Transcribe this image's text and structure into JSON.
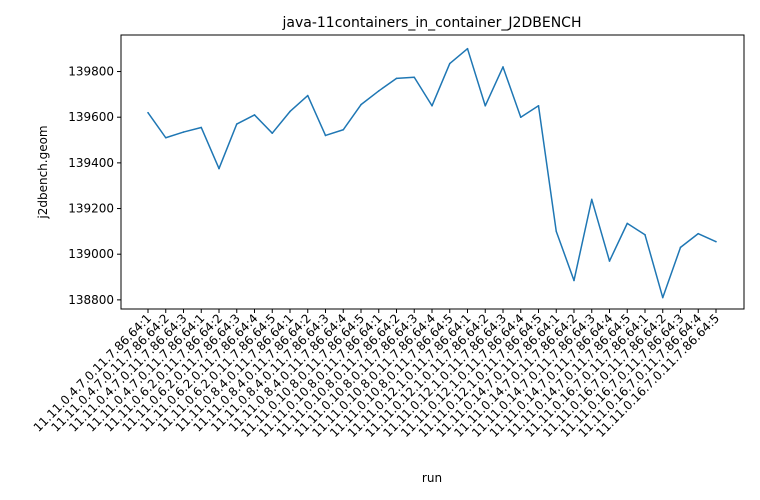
{
  "chart_data": {
    "type": "line",
    "title": "java-11containers_in_container_J2DBENCH",
    "xlabel": "run",
    "ylabel": "j2dbench.geom",
    "ylim": [
      138760,
      139960
    ],
    "yticks": [
      138800,
      139000,
      139200,
      139400,
      139600,
      139800
    ],
    "grid": false,
    "categories": [
      "11.11.0.4.7.0.11.7.86.64:1",
      "11.11.0.4.7.0.11.7.86.64:2",
      "11.11.0.4.7.0.11.7.86.64:3",
      "11.11.0.4.7.0.11.7.86.64:1",
      "11.11.0.6.2.0.11.7.86.64:2",
      "11.11.0.6.2.0.11.7.86.64:3",
      "11.11.0.6.2.0.11.7.86.64:4",
      "11.11.0.6.2.0.11.7.86.64:5",
      "11.11.0.8.4.0.11.7.86.64:1",
      "11.11.0.8.4.0.11.7.86.64:2",
      "11.11.0.8.4.0.11.7.86.64:3",
      "11.11.0.8.4.0.11.7.86.64:4",
      "11.11.0.10.8.0.11.7.86.64:5",
      "11.11.0.10.8.0.11.7.86.64:1",
      "11.11.0.10.8.0.11.7.86.64:2",
      "11.11.0.10.8.0.11.7.86.64:3",
      "11.11.0.10.8.0.11.7.86.64:4",
      "11.11.0.10.8.0.11.7.86.64:5",
      "11.11.0.12.1.0.11.7.86.64:1",
      "11.11.0.12.1.0.11.7.86.64:2",
      "11.11.0.12.1.0.11.7.86.64:3",
      "11.11.0.12.1.0.11.7.86.64:4",
      "11.11.0.12.1.0.11.7.86.64:5",
      "11.11.0.14.7.0.11.7.86.64:1",
      "11.11.0.14.7.0.11.7.86.64:2",
      "11.11.0.14.7.0.11.7.86.64:3",
      "11.11.0.14.7.0.11.7.86.64:4",
      "11.11.0.14.7.0.11.7.86.64:5",
      "11.11.0.16.7.0.11.7.86.64:1",
      "11.11.0.16.7.0.11.7.86.64:2",
      "11.11.0.16.7.0.11.7.86.64:3",
      "11.11.0.16.7.0.11.7.86.64:4",
      "11.11.0.16.7.0.11.7.86.64:5"
    ],
    "series": [
      {
        "color": "#1f77b4",
        "values": [
          139620,
          139510,
          139535,
          139555,
          139375,
          139570,
          139610,
          139530,
          139625,
          139695,
          139520,
          139545,
          139655,
          139715,
          139770,
          139775,
          139650,
          139835,
          139900,
          139650,
          139820,
          139600,
          139650,
          139100,
          138885,
          139240,
          138970,
          139135,
          139085,
          138810,
          139030,
          139090,
          139055
        ]
      }
    ]
  }
}
